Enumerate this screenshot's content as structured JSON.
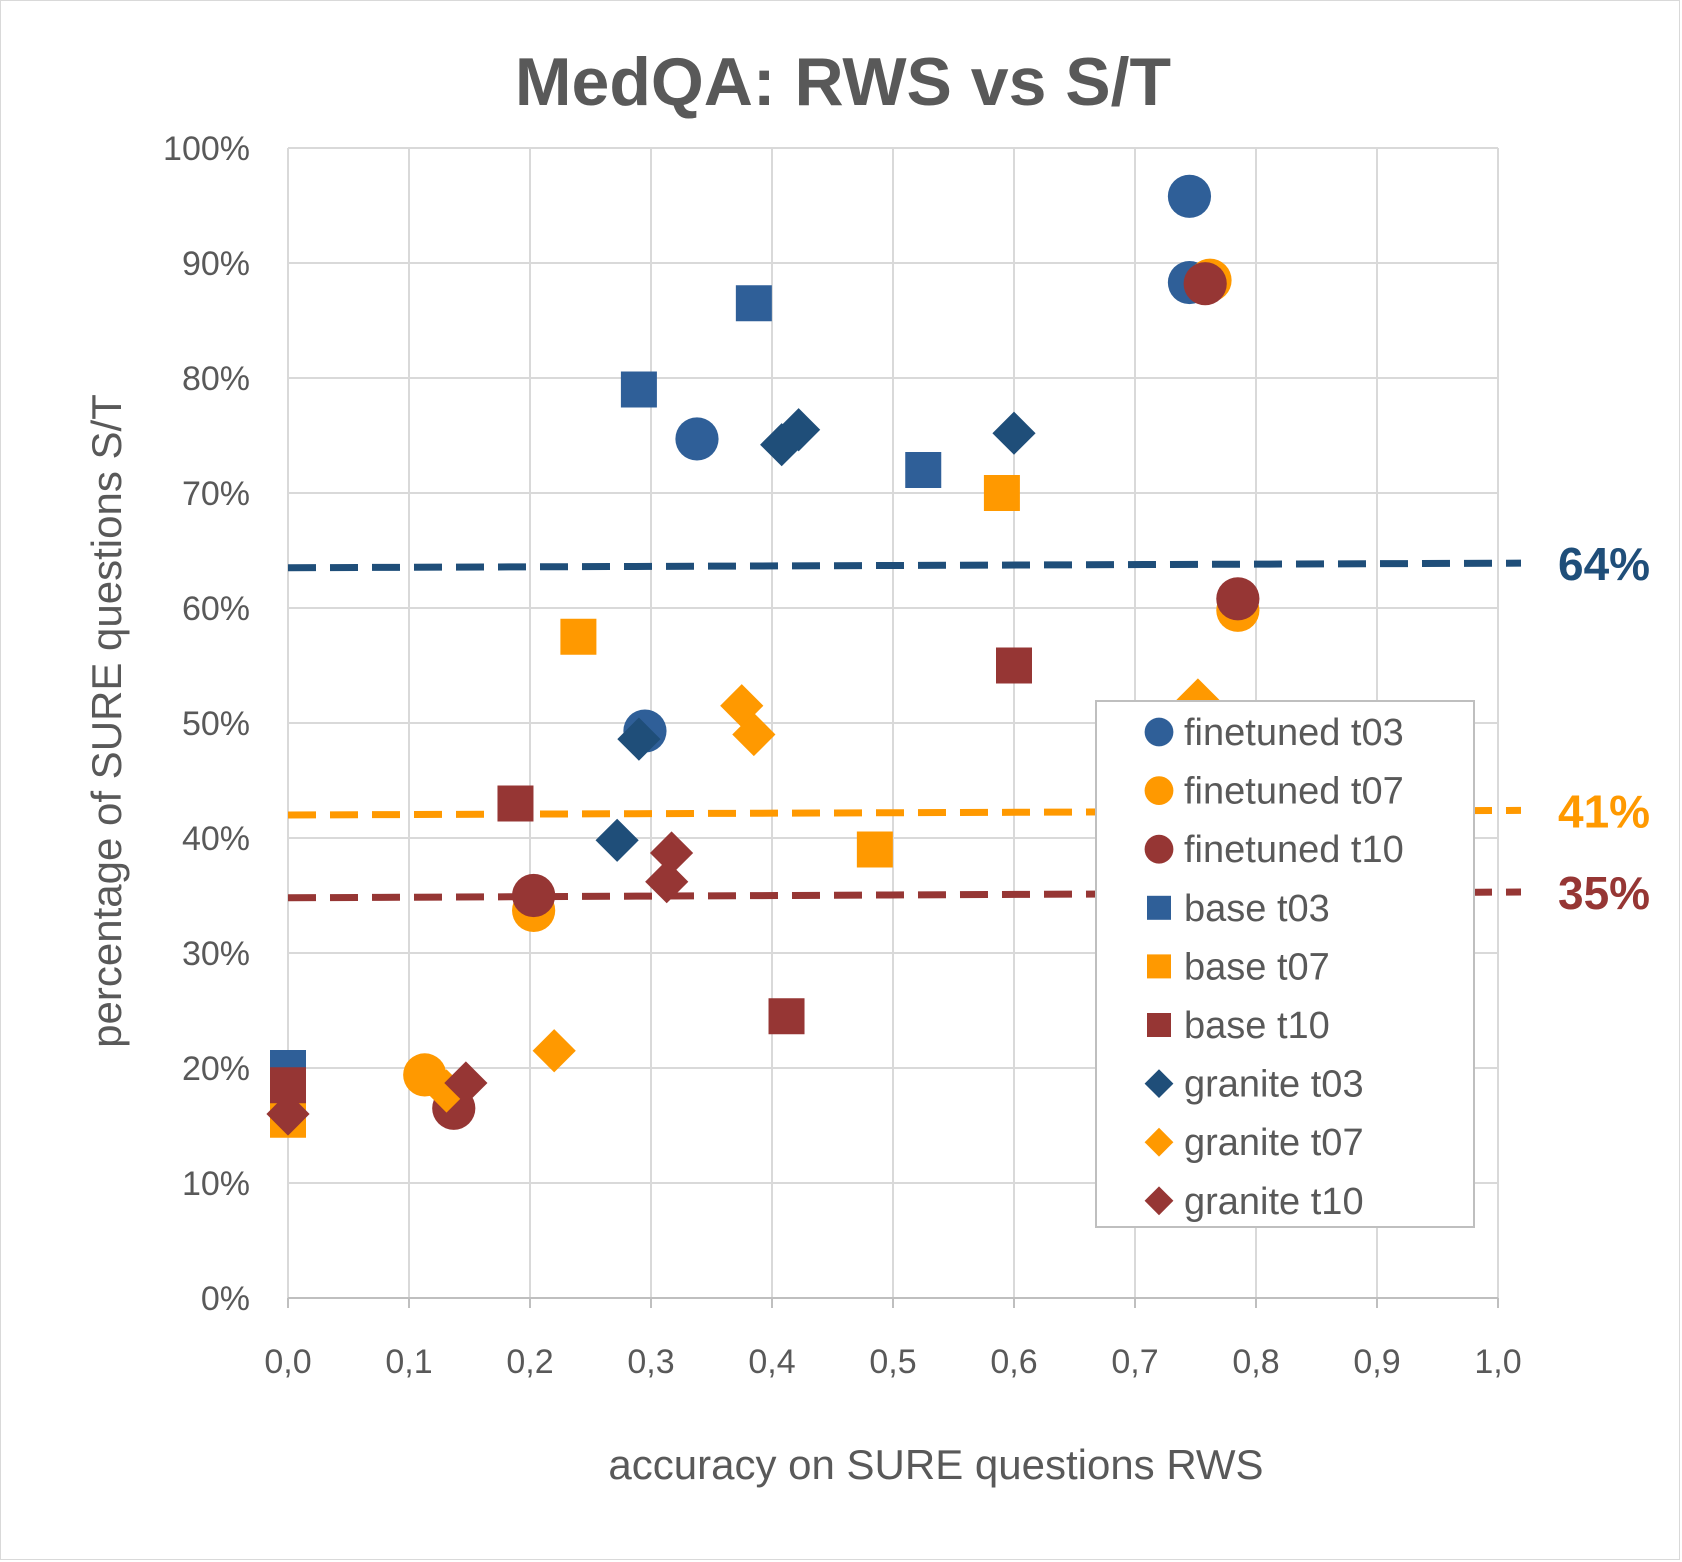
{
  "chart_data": {
    "type": "scatter",
    "title": "MedQA: RWS  vs S/T",
    "xlabel": "accuracy on SURE questions RWS",
    "ylabel": "percentage of SURE questions S/T",
    "xlim": [
      0,
      1
    ],
    "ylim": [
      0,
      1
    ],
    "x_ticks": [
      "0,0",
      "0,1",
      "0,2",
      "0,3",
      "0,4",
      "0,5",
      "0,6",
      "0,7",
      "0,8",
      "0,9",
      "1,0"
    ],
    "y_ticks": [
      "0%",
      "10%",
      "20%",
      "30%",
      "40%",
      "50%",
      "60%",
      "70%",
      "80%",
      "90%",
      "100%"
    ],
    "grid": true,
    "legend_position": "right",
    "series": [
      {
        "name": "base t03",
        "marker": "square",
        "color": "#2f5f98",
        "points": [
          [
            0.0,
            0.2
          ],
          [
            0.29,
            0.79
          ],
          [
            0.385,
            0.865
          ],
          [
            0.525,
            0.72
          ]
        ]
      },
      {
        "name": "base t07",
        "marker": "square",
        "color": "#ff9900",
        "points": [
          [
            0.0,
            0.155
          ],
          [
            0.24,
            0.575
          ],
          [
            0.485,
            0.39
          ],
          [
            0.59,
            0.7
          ]
        ]
      },
      {
        "name": "base t10",
        "marker": "square",
        "color": "#963634",
        "points": [
          [
            0.0,
            0.185
          ],
          [
            0.188,
            0.43
          ],
          [
            0.412,
            0.245
          ],
          [
            0.6,
            0.55
          ]
        ]
      },
      {
        "name": "finetuned t03",
        "marker": "circle",
        "color": "#2f5f98",
        "points": [
          [
            0.295,
            0.493
          ],
          [
            0.338,
            0.747
          ],
          [
            0.745,
            0.883
          ],
          [
            0.745,
            0.958
          ]
        ]
      },
      {
        "name": "finetuned t07",
        "marker": "circle",
        "color": "#ff9900",
        "points": [
          [
            0.113,
            0.194
          ],
          [
            0.203,
            0.337
          ],
          [
            0.762,
            0.885
          ],
          [
            0.785,
            0.598
          ]
        ]
      },
      {
        "name": "finetuned t10",
        "marker": "circle",
        "color": "#963634",
        "points": [
          [
            0.137,
            0.165
          ],
          [
            0.203,
            0.35
          ],
          [
            0.758,
            0.882
          ],
          [
            0.785,
            0.608
          ]
        ]
      },
      {
        "name": "granite t03",
        "marker": "diamond",
        "color": "#1f4e79",
        "points": [
          [
            0.272,
            0.398
          ],
          [
            0.29,
            0.486
          ],
          [
            0.408,
            0.742
          ],
          [
            0.422,
            0.755
          ],
          [
            0.6,
            0.752
          ]
        ]
      },
      {
        "name": "granite t07",
        "marker": "diamond",
        "color": "#ff9900",
        "points": [
          [
            0.131,
            0.18
          ],
          [
            0.22,
            0.215
          ],
          [
            0.375,
            0.515
          ],
          [
            0.385,
            0.49
          ],
          [
            0.752,
            0.52
          ]
        ]
      },
      {
        "name": "granite t10",
        "marker": "diamond",
        "color": "#963634",
        "points": [
          [
            0.0,
            0.16
          ],
          [
            0.147,
            0.187
          ],
          [
            0.313,
            0.362
          ],
          [
            0.317,
            0.387
          ]
        ]
      }
    ],
    "reference_lines": [
      {
        "label": "64%",
        "y_start": 0.635,
        "y_end": 0.639,
        "color": "#1f4e79"
      },
      {
        "label": "41%",
        "y_start": 0.42,
        "y_end": 0.424,
        "color": "#ff9900"
      },
      {
        "label": "35%",
        "y_start": 0.348,
        "y_end": 0.353,
        "color": "#963634"
      }
    ],
    "legend_order": [
      "finetuned t03",
      "finetuned t07",
      "finetuned t10",
      "base t03",
      "base t07",
      "base t10",
      "granite t03",
      "granite t07",
      "granite t10"
    ]
  }
}
